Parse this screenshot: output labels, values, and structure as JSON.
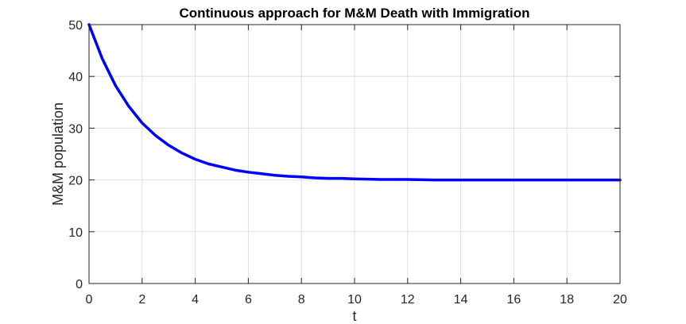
{
  "chart_data": {
    "type": "line",
    "title": "Continuous approach for M&M Death with Immigration",
    "xlabel": "t",
    "ylabel": "M&M population",
    "xlim": [
      0,
      20
    ],
    "ylim": [
      0,
      50
    ],
    "xticks": [
      0,
      2,
      4,
      6,
      8,
      10,
      12,
      14,
      16,
      18,
      20
    ],
    "yticks": [
      0,
      10,
      20,
      30,
      40,
      50
    ],
    "grid": true,
    "series": [
      {
        "color": "#0000ff",
        "x": [
          0,
          0.5,
          1,
          1.5,
          2,
          2.5,
          3,
          3.5,
          4,
          4.5,
          5,
          5.5,
          6,
          6.5,
          7,
          7.5,
          8,
          8.5,
          9,
          9.5,
          10,
          11,
          12,
          13,
          14,
          15,
          16,
          17,
          18,
          19,
          20
        ],
        "y": [
          50,
          43.4,
          38.2,
          34.2,
          31.0,
          28.6,
          26.7,
          25.2,
          24.0,
          23.1,
          22.5,
          21.9,
          21.5,
          21.2,
          20.9,
          20.7,
          20.6,
          20.4,
          20.3,
          20.3,
          20.2,
          20.1,
          20.1,
          20.0,
          20.0,
          20.0,
          20.0,
          20.0,
          20.0,
          20.0,
          20.0
        ]
      }
    ]
  }
}
